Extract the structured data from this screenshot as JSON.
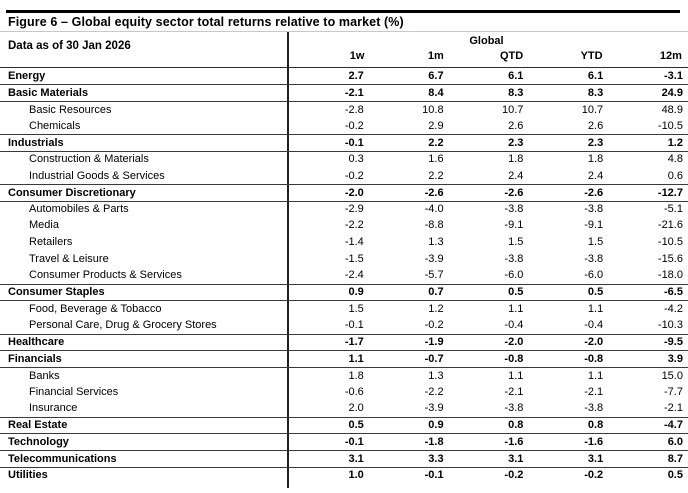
{
  "figure": {
    "title": "Figure 6 – Global equity sector total returns relative to market (%)",
    "data_as_of": "Data as of 30 Jan 2026"
  },
  "table": {
    "group_header": "Global",
    "columns": [
      "1w",
      "1m",
      "QTD",
      "YTD",
      "12m"
    ],
    "rows": [
      {
        "name": "Energy",
        "bold": true,
        "values": [
          "2.7",
          "6.7",
          "6.1",
          "6.1",
          "-3.1"
        ]
      },
      {
        "name": "Basic Materials",
        "bold": true,
        "values": [
          "-2.1",
          "8.4",
          "8.3",
          "8.3",
          "24.9"
        ]
      },
      {
        "name": "Basic Resources",
        "bold": false,
        "values": [
          "-2.8",
          "10.8",
          "10.7",
          "10.7",
          "48.9"
        ]
      },
      {
        "name": "Chemicals",
        "bold": false,
        "values": [
          "-0.2",
          "2.9",
          "2.6",
          "2.6",
          "-10.5"
        ]
      },
      {
        "name": "Industrials",
        "bold": true,
        "values": [
          "-0.1",
          "2.2",
          "2.3",
          "2.3",
          "1.2"
        ]
      },
      {
        "name": "Construction & Materials",
        "bold": false,
        "values": [
          "0.3",
          "1.6",
          "1.8",
          "1.8",
          "4.8"
        ]
      },
      {
        "name": "Industrial Goods & Services",
        "bold": false,
        "values": [
          "-0.2",
          "2.2",
          "2.4",
          "2.4",
          "0.6"
        ]
      },
      {
        "name": "Consumer Discretionary",
        "bold": true,
        "values": [
          "-2.0",
          "-2.6",
          "-2.6",
          "-2.6",
          "-12.7"
        ]
      },
      {
        "name": "Automobiles & Parts",
        "bold": false,
        "values": [
          "-2.9",
          "-4.0",
          "-3.8",
          "-3.8",
          "-5.1"
        ]
      },
      {
        "name": "Media",
        "bold": false,
        "values": [
          "-2.2",
          "-8.8",
          "-9.1",
          "-9.1",
          "-21.6"
        ]
      },
      {
        "name": "Retailers",
        "bold": false,
        "values": [
          "-1.4",
          "1.3",
          "1.5",
          "1.5",
          "-10.5"
        ]
      },
      {
        "name": "Travel & Leisure",
        "bold": false,
        "values": [
          "-1.5",
          "-3.9",
          "-3.8",
          "-3.8",
          "-15.6"
        ]
      },
      {
        "name": "Consumer Products & Services",
        "bold": false,
        "values": [
          "-2.4",
          "-5.7",
          "-6.0",
          "-6.0",
          "-18.0"
        ]
      },
      {
        "name": "Consumer Staples",
        "bold": true,
        "values": [
          "0.9",
          "0.7",
          "0.5",
          "0.5",
          "-6.5"
        ]
      },
      {
        "name": "Food, Beverage & Tobacco",
        "bold": false,
        "values": [
          "1.5",
          "1.2",
          "1.1",
          "1.1",
          "-4.2"
        ]
      },
      {
        "name": "Personal Care, Drug & Grocery Stores",
        "bold": false,
        "values": [
          "-0.1",
          "-0.2",
          "-0.4",
          "-0.4",
          "-10.3"
        ]
      },
      {
        "name": "Healthcare",
        "bold": true,
        "values": [
          "-1.7",
          "-1.9",
          "-2.0",
          "-2.0",
          "-9.5"
        ]
      },
      {
        "name": "Financials",
        "bold": true,
        "values": [
          "1.1",
          "-0.7",
          "-0.8",
          "-0.8",
          "3.9"
        ]
      },
      {
        "name": "Banks",
        "bold": false,
        "values": [
          "1.8",
          "1.3",
          "1.1",
          "1.1",
          "15.0"
        ]
      },
      {
        "name": "Financial Services",
        "bold": false,
        "values": [
          "-0.6",
          "-2.2",
          "-2.1",
          "-2.1",
          "-7.7"
        ]
      },
      {
        "name": "Insurance",
        "bold": false,
        "values": [
          "2.0",
          "-3.9",
          "-3.8",
          "-3.8",
          "-2.1"
        ]
      },
      {
        "name": "Real Estate",
        "bold": true,
        "values": [
          "0.5",
          "0.9",
          "0.8",
          "0.8",
          "-4.7"
        ]
      },
      {
        "name": "Technology",
        "bold": true,
        "values": [
          "-0.1",
          "-1.8",
          "-1.6",
          "-1.6",
          "6.0"
        ]
      },
      {
        "name": "Telecommunications",
        "bold": true,
        "values": [
          "3.1",
          "3.3",
          "3.1",
          "3.1",
          "8.7"
        ]
      },
      {
        "name": "Utilities",
        "bold": true,
        "values": [
          "1.0",
          "-0.1",
          "-0.2",
          "-0.2",
          "0.5"
        ]
      }
    ]
  },
  "colors": {
    "text": "#000000",
    "background": "#ffffff",
    "top_rule": "#000000",
    "row_rule": "#3a3a3a",
    "title_rule": "#ccc6c6"
  }
}
